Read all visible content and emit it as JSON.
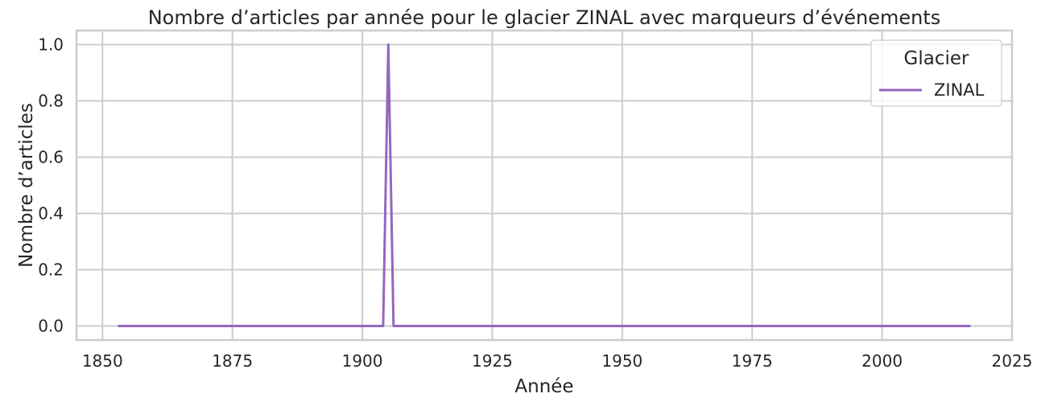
{
  "chart_data": {
    "type": "line",
    "title": "Nombre d’articles par année pour le glacier ZINAL avec marqueurs d’événements",
    "xlabel": "Année",
    "ylabel": "Nombre d’articles",
    "xlim": [
      1845,
      2025
    ],
    "ylim": [
      -0.05,
      1.05
    ],
    "xticks": [
      1850,
      1875,
      1900,
      1925,
      1950,
      1975,
      2000,
      2025
    ],
    "yticks": [
      0.0,
      0.2,
      0.4,
      0.6,
      0.8,
      1.0
    ],
    "xtick_labels": [
      "1850",
      "1875",
      "1900",
      "1925",
      "1950",
      "1975",
      "2000",
      "2025"
    ],
    "ytick_labels": [
      "0.0",
      "0.2",
      "0.4",
      "0.6",
      "0.8",
      "1.0"
    ],
    "grid": true,
    "legend": {
      "title": "Glacier",
      "placement": "top-right"
    },
    "series": [
      {
        "name": "ZINAL",
        "color": "#9467bd",
        "x": [
          1853,
          1904,
          1905,
          1906,
          2017
        ],
        "y": [
          0,
          0,
          1,
          0,
          0
        ]
      }
    ]
  }
}
